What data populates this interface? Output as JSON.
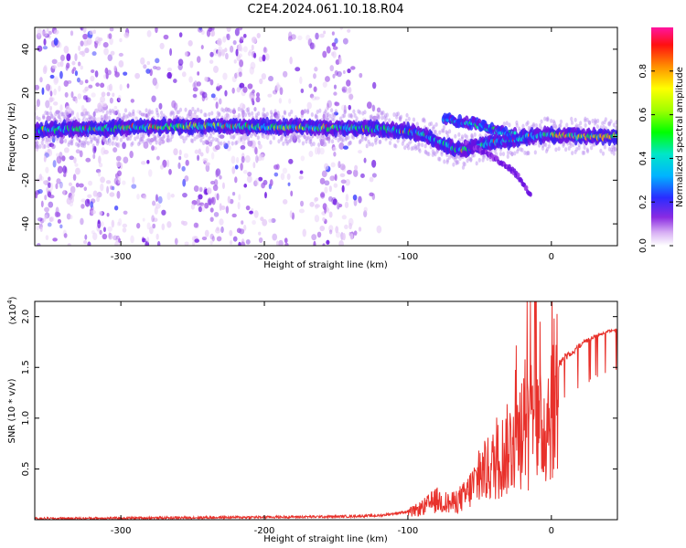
{
  "title": "C2E4.2024.061.10.18.R04",
  "chart_data": [
    {
      "type": "heatmap",
      "xlabel": "Height of straight line (km)",
      "ylabel": "Frequency (Hz)",
      "xlim": [
        -360,
        46
      ],
      "ylim": [
        -50,
        50
      ],
      "xticks": [
        -300,
        -200,
        -100,
        0
      ],
      "yticks": [
        -40,
        -20,
        0,
        20,
        40
      ],
      "colorbar": {
        "label": "Normalized spectral amplitude",
        "range": [
          0,
          1
        ],
        "ticks": [
          "0.0",
          "0.2",
          "0.4",
          "0.6",
          "0.8"
        ],
        "tick_values": [
          0.0,
          0.2,
          0.4,
          0.6,
          0.8
        ]
      },
      "main_band": {
        "x": [
          -360,
          -300,
          -250,
          -200,
          -150,
          -120,
          -100,
          -90,
          -80,
          -70,
          -62,
          -55,
          -45,
          -35,
          -25,
          -15,
          -5,
          10,
          30,
          46
        ],
        "frequency_hz": [
          3,
          4,
          5,
          4.5,
          4,
          3.5,
          2.5,
          1,
          -2,
          -5,
          -6.5,
          -5,
          -3,
          -2,
          -1.5,
          0,
          0.5,
          0.5,
          0,
          0
        ]
      },
      "secondary_band": {
        "x": [
          -75,
          -65,
          -55,
          -45,
          -35,
          -25
        ],
        "frequency_hz": [
          8,
          7,
          6,
          4,
          2,
          1
        ]
      },
      "branch": {
        "x": [
          -60,
          -45,
          -30,
          -22,
          -18,
          -14
        ],
        "frequency_hz": [
          -3,
          -8,
          -14,
          -19,
          -23,
          -27
        ]
      }
    },
    {
      "type": "line",
      "xlabel": "Height of straight line (km)",
      "ylabel": "SNR (10 * v/v)",
      "yscale_label": "(x10",
      "yscale_exp": "4",
      "xlim": [
        -360,
        46
      ],
      "ylim": [
        0,
        2.15
      ],
      "xticks": [
        -300,
        -200,
        -100,
        0
      ],
      "yticks": [
        0.5,
        1.0,
        1.5,
        2.0
      ],
      "ytick_labels": [
        "0.5",
        "1.0",
        "1.5",
        "2.0"
      ],
      "color": "#e8312b",
      "envelope": {
        "x": [
          -360,
          -300,
          -250,
          -200,
          -150,
          -120,
          -100,
          -90,
          -80,
          -70,
          -60,
          -50,
          -40,
          -30,
          -20,
          -12,
          -5,
          0,
          10,
          20,
          30,
          40,
          46
        ],
        "y": [
          0.01,
          0.015,
          0.02,
          0.025,
          0.03,
          0.04,
          0.08,
          0.15,
          0.25,
          0.2,
          0.3,
          0.55,
          0.7,
          0.9,
          1.2,
          1.0,
          1.2,
          1.5,
          1.65,
          1.75,
          1.82,
          1.87,
          1.88
        ]
      }
    }
  ]
}
